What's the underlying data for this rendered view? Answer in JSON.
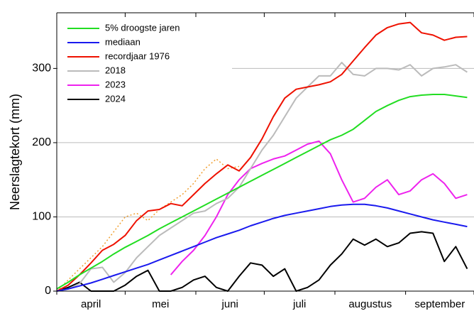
{
  "chart_data": {
    "type": "line",
    "y_label": "Neerslagtekort (mm)",
    "months": [
      "april",
      "mei",
      "juni",
      "juli",
      "augustus",
      "september"
    ],
    "xlim": [
      0,
      183
    ],
    "xticks": [
      0,
      30,
      61,
      91,
      122,
      153,
      183
    ],
    "ylim": [
      0,
      375
    ],
    "yticks": [
      0,
      100,
      200,
      300
    ],
    "grid": true,
    "legend": "upper left",
    "x": [
      0,
      5,
      10,
      15,
      20,
      25,
      30,
      35,
      40,
      45,
      50,
      55,
      60,
      65,
      70,
      75,
      80,
      85,
      90,
      95,
      100,
      105,
      110,
      115,
      120,
      125,
      130,
      135,
      140,
      145,
      150,
      155,
      160,
      165,
      170,
      175,
      180
    ],
    "series": [
      {
        "name": "5% droogste jaren",
        "color": "#22dd22",
        "values": [
          3,
          12,
          22,
          31,
          40,
          50,
          59,
          67,
          75,
          84,
          92,
          100,
          108,
          116,
          124,
          132,
          140,
          148,
          156,
          164,
          172,
          180,
          188,
          196,
          204,
          210,
          218,
          230,
          242,
          250,
          257,
          262,
          264,
          265,
          265,
          263,
          261
        ]
      },
      {
        "name": "mediaan",
        "color": "#1a1aee",
        "values": [
          0,
          3,
          7,
          11,
          16,
          21,
          26,
          31,
          36,
          42,
          48,
          54,
          60,
          66,
          72,
          77,
          82,
          88,
          93,
          98,
          102,
          105,
          108,
          111,
          114,
          116,
          117,
          117,
          115,
          112,
          108,
          104,
          100,
          96,
          93,
          90,
          87
        ]
      },
      {
        "name": "recordjaar 1976",
        "color": "#ee1100",
        "values": [
          0,
          8,
          22,
          38,
          55,
          63,
          75,
          95,
          108,
          110,
          118,
          115,
          130,
          145,
          158,
          170,
          162,
          180,
          205,
          235,
          260,
          272,
          275,
          278,
          282,
          292,
          310,
          328,
          345,
          355,
          360,
          362,
          348,
          345,
          338,
          342,
          343
        ]
      },
      {
        "name": "2018",
        "color": "#bbbbbb",
        "values": [
          0,
          3,
          10,
          30,
          32,
          12,
          25,
          45,
          60,
          75,
          85,
          95,
          105,
          108,
          118,
          125,
          140,
          165,
          190,
          210,
          235,
          260,
          275,
          290,
          290,
          308,
          292,
          290,
          300,
          300,
          298,
          305,
          290,
          300,
          302,
          305,
          295
        ]
      },
      {
        "name": "2023",
        "color": "#ee22ee",
        "values": [
          null,
          null,
          null,
          null,
          null,
          null,
          null,
          null,
          null,
          null,
          22,
          40,
          55,
          75,
          100,
          130,
          150,
          165,
          172,
          178,
          182,
          190,
          198,
          202,
          185,
          150,
          120,
          125,
          140,
          150,
          130,
          135,
          150,
          158,
          145,
          125,
          130
        ]
      },
      {
        "name": "2024",
        "color": "#000000",
        "values": [
          0,
          5,
          12,
          0,
          0,
          0,
          8,
          20,
          28,
          0,
          0,
          5,
          15,
          20,
          5,
          0,
          20,
          38,
          35,
          20,
          30,
          0,
          5,
          15,
          35,
          50,
          70,
          62,
          70,
          60,
          65,
          78,
          80,
          78,
          40,
          60,
          30
        ]
      },
      {
        "color": "#f0a030",
        "style": "dotted",
        "values": [
          0,
          15,
          30,
          45,
          60,
          80,
          100,
          105,
          95,
          110,
          120,
          130,
          145,
          165,
          178,
          165,
          168,
          null,
          null,
          null,
          null,
          null,
          null,
          null,
          null,
          null,
          null,
          null,
          null,
          null,
          null,
          null,
          null,
          null,
          null,
          null,
          null
        ]
      }
    ]
  }
}
